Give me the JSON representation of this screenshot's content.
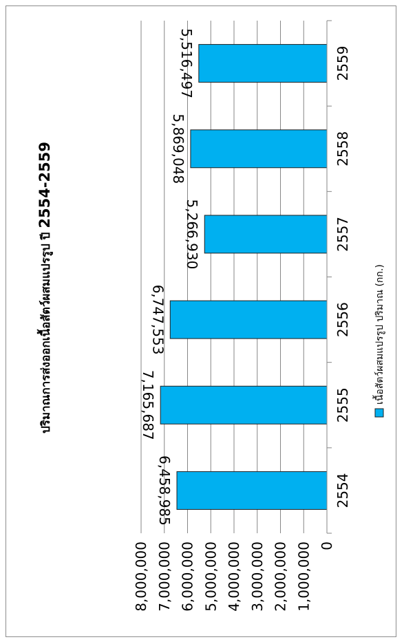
{
  "chart_data": {
    "type": "bar",
    "orientation": "horizontal",
    "title": "ปริมาณการส่งออกเนื้อสัตว์ผสมแปรรูป ปี 2554-2559",
    "title_prefix": "ปริมาณการส่งออกเนื้อสัตว์ผสมแปรรูป ปี ",
    "title_years": "2554-2559",
    "categories": [
      "2554",
      "2555",
      "2556",
      "2557",
      "2558",
      "2559"
    ],
    "series": [
      {
        "name": "เนื้อสัตว์ผสมแปรรูป  ปริมาณ (กก.)",
        "values": [
          6458985,
          7165687,
          6747553,
          5266930,
          5869048,
          5516497
        ],
        "color": "#00b0f0"
      }
    ],
    "value_labels": [
      "6,458,985",
      "7,165,687",
      "6,747,553",
      "5,266,930",
      "5,869,048",
      "5,516,497"
    ],
    "value_ticks": [
      "0",
      "1,000,000",
      "2,000,000",
      "3,000,000",
      "4,000,000",
      "5,000,000",
      "6,000,000",
      "7,000,000",
      "8,000,000"
    ],
    "ylim": [
      0,
      8000000
    ],
    "grid": true,
    "legend": {
      "position": "bottom",
      "label": "เนื้อสัตว์ผสมแปรรูป  ปริมาณ (กก.)"
    }
  }
}
